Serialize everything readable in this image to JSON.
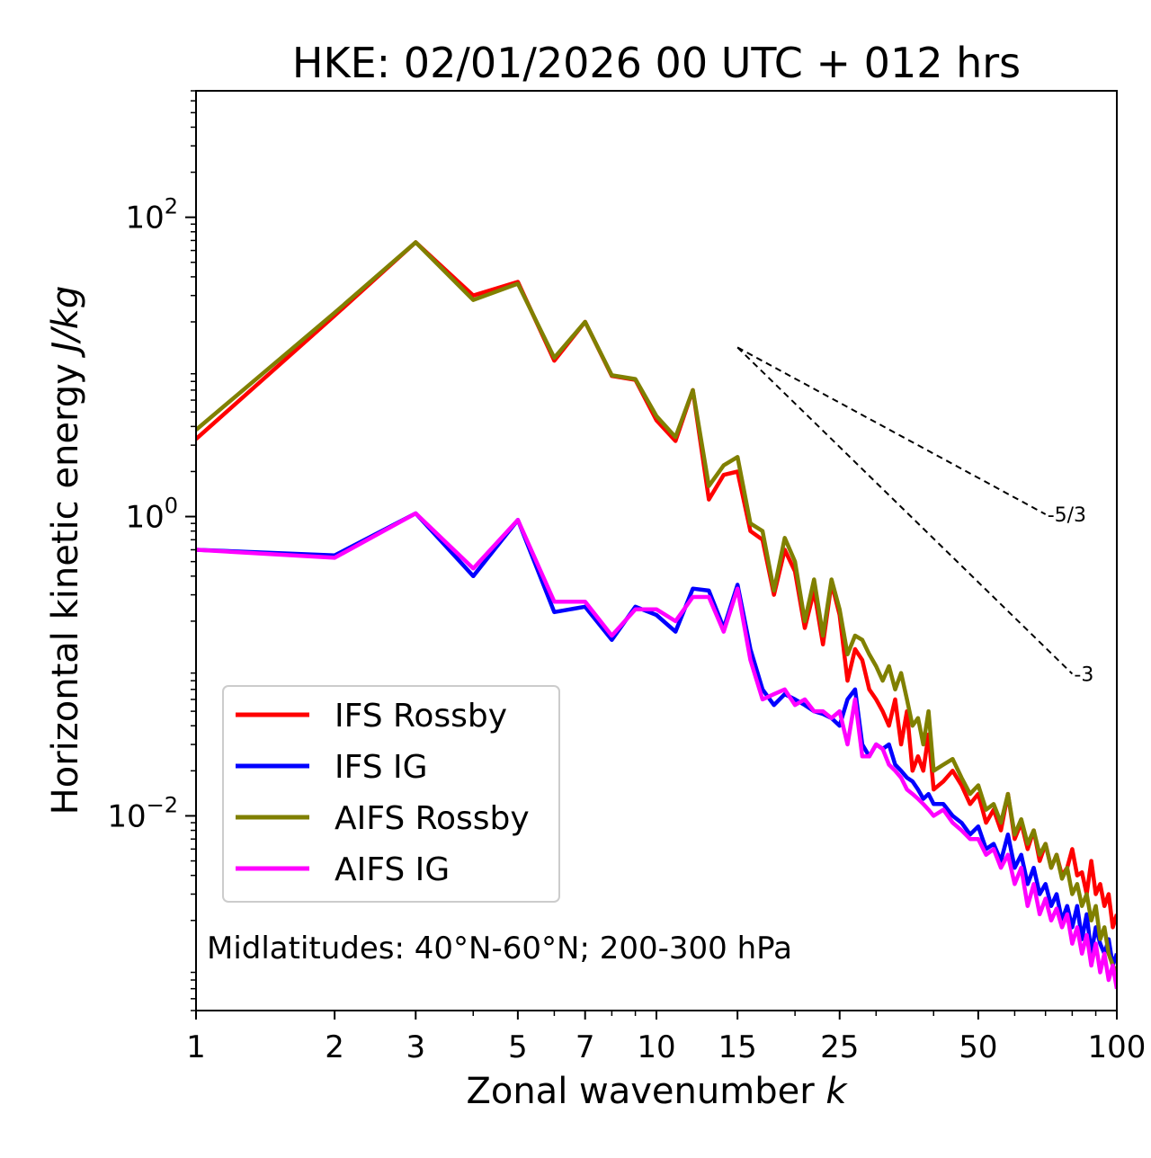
{
  "chart_data": {
    "type": "line",
    "title": "HKE: 02/01/2026 00 UTC + 012 hrs",
    "xlabel": "Zonal wavenumber",
    "xlabel_italic": "k",
    "ylabel": "Horizontal kinetic energy",
    "ylabel_italic": "J/kg",
    "xscale": "log",
    "yscale": "log",
    "xlim": [
      1,
      100
    ],
    "ylim": [
      0.0005,
      700
    ],
    "x_ticks": [
      1,
      2,
      3,
      5,
      7,
      10,
      15,
      25,
      50,
      100
    ],
    "x_tick_labels": [
      "1",
      "2",
      "3",
      "5",
      "7",
      "10",
      "15",
      "25",
      "50",
      "100"
    ],
    "y_ticks": [
      {
        "value": 100,
        "base": "10",
        "exp": "2"
      },
      {
        "value": 1,
        "base": "10",
        "exp": "0"
      },
      {
        "value": 0.01,
        "base": "10",
        "exp": "−2"
      }
    ],
    "annotation": "Midlatitudes: 40°N-60°N; 200-300 hPa",
    "legend_position": "lower-left",
    "reference_lines": [
      {
        "label": "-5/3",
        "slope": -1.6667,
        "x0": 15,
        "y0": 13.5,
        "x1": 70
      },
      {
        "label": "-3",
        "slope": -3,
        "x0": 15,
        "y0": 13.5,
        "x1": 80
      }
    ],
    "series": [
      {
        "name": "IFS Rossby",
        "color": "#ff0000",
        "points": [
          [
            1,
            3.3
          ],
          [
            2,
            22
          ],
          [
            3,
            68
          ],
          [
            4,
            30
          ],
          [
            5,
            37
          ],
          [
            6,
            11
          ],
          [
            7,
            20
          ],
          [
            8,
            8.7
          ],
          [
            9,
            8.2
          ],
          [
            10,
            4.4
          ],
          [
            11,
            3.2
          ],
          [
            12,
            7
          ],
          [
            13,
            1.3
          ],
          [
            14,
            1.9
          ],
          [
            15,
            2.0
          ],
          [
            16,
            0.8
          ],
          [
            17,
            0.7
          ],
          [
            18,
            0.3
          ],
          [
            19,
            0.6
          ],
          [
            20,
            0.43
          ],
          [
            21,
            0.18
          ],
          [
            22,
            0.32
          ],
          [
            23,
            0.14
          ],
          [
            24,
            0.36
          ],
          [
            25,
            0.22
          ],
          [
            26,
            0.08
          ],
          [
            27,
            0.13
          ],
          [
            28,
            0.11
          ],
          [
            29,
            0.07
          ],
          [
            30,
            0.06
          ],
          [
            31,
            0.05
          ],
          [
            32,
            0.04
          ],
          [
            33,
            0.06
          ],
          [
            34,
            0.03
          ],
          [
            35,
            0.05
          ],
          [
            36,
            0.02
          ],
          [
            37,
            0.025
          ],
          [
            38,
            0.02
          ],
          [
            39,
            0.035
          ],
          [
            40,
            0.015
          ],
          [
            42,
            0.017
          ],
          [
            44,
            0.02
          ],
          [
            46,
            0.016
          ],
          [
            48,
            0.012
          ],
          [
            50,
            0.014
          ],
          [
            52,
            0.009
          ],
          [
            54,
            0.011
          ],
          [
            56,
            0.008
          ],
          [
            58,
            0.014
          ],
          [
            60,
            0.007
          ],
          [
            62,
            0.009
          ],
          [
            64,
            0.006
          ],
          [
            66,
            0.008
          ],
          [
            68,
            0.005
          ],
          [
            70,
            0.0065
          ],
          [
            72,
            0.0045
          ],
          [
            74,
            0.0055
          ],
          [
            76,
            0.004
          ],
          [
            78,
            0.0045
          ],
          [
            80,
            0.006
          ],
          [
            82,
            0.004
          ],
          [
            84,
            0.0042
          ],
          [
            86,
            0.003
          ],
          [
            88,
            0.005
          ],
          [
            90,
            0.003
          ],
          [
            92,
            0.0035
          ],
          [
            94,
            0.0025
          ],
          [
            96,
            0.003
          ],
          [
            98,
            0.0018
          ],
          [
            100,
            0.0022
          ]
        ]
      },
      {
        "name": "IFS IG",
        "color": "#0000ff",
        "points": [
          [
            1,
            0.6
          ],
          [
            2,
            0.55
          ],
          [
            3,
            1.05
          ],
          [
            4,
            0.4
          ],
          [
            5,
            0.95
          ],
          [
            6,
            0.23
          ],
          [
            7,
            0.25
          ],
          [
            8,
            0.15
          ],
          [
            9,
            0.25
          ],
          [
            10,
            0.22
          ],
          [
            11,
            0.17
          ],
          [
            12,
            0.33
          ],
          [
            13,
            0.32
          ],
          [
            14,
            0.18
          ],
          [
            15,
            0.35
          ],
          [
            16,
            0.13
          ],
          [
            17,
            0.07
          ],
          [
            18,
            0.055
          ],
          [
            19,
            0.065
          ],
          [
            20,
            0.06
          ],
          [
            21,
            0.055
          ],
          [
            22,
            0.05
          ],
          [
            23,
            0.048
          ],
          [
            24,
            0.045
          ],
          [
            25,
            0.04
          ],
          [
            26,
            0.06
          ],
          [
            27,
            0.07
          ],
          [
            28,
            0.03
          ],
          [
            29,
            0.025
          ],
          [
            30,
            0.03
          ],
          [
            31,
            0.028
          ],
          [
            32,
            0.03
          ],
          [
            33,
            0.022
          ],
          [
            34,
            0.02
          ],
          [
            35,
            0.018
          ],
          [
            36,
            0.017
          ],
          [
            37,
            0.015
          ],
          [
            38,
            0.013
          ],
          [
            39,
            0.014
          ],
          [
            40,
            0.012
          ],
          [
            42,
            0.012
          ],
          [
            44,
            0.01
          ],
          [
            46,
            0.009
          ],
          [
            48,
            0.0075
          ],
          [
            50,
            0.0085
          ],
          [
            52,
            0.006
          ],
          [
            54,
            0.0065
          ],
          [
            56,
            0.005
          ],
          [
            58,
            0.0075
          ],
          [
            60,
            0.0045
          ],
          [
            62,
            0.0055
          ],
          [
            64,
            0.0035
          ],
          [
            66,
            0.0045
          ],
          [
            68,
            0.003
          ],
          [
            70,
            0.0035
          ],
          [
            72,
            0.0025
          ],
          [
            74,
            0.003
          ],
          [
            76,
            0.002
          ],
          [
            78,
            0.0025
          ],
          [
            80,
            0.0018
          ],
          [
            82,
            0.0025
          ],
          [
            84,
            0.0015
          ],
          [
            86,
            0.0022
          ],
          [
            88,
            0.0012
          ],
          [
            90,
            0.0018
          ],
          [
            92,
            0.0014
          ],
          [
            94,
            0.0012
          ],
          [
            96,
            0.0015
          ],
          [
            98,
            0.001
          ],
          [
            100,
            0.0012
          ]
        ]
      },
      {
        "name": "AIFS Rossby",
        "color": "#808000",
        "points": [
          [
            1,
            3.8
          ],
          [
            2,
            23
          ],
          [
            3,
            68
          ],
          [
            4,
            28
          ],
          [
            5,
            36
          ],
          [
            6,
            11.5
          ],
          [
            7,
            20
          ],
          [
            8,
            8.8
          ],
          [
            9,
            8.3
          ],
          [
            10,
            4.7
          ],
          [
            11,
            3.4
          ],
          [
            12,
            7
          ],
          [
            13,
            1.6
          ],
          [
            14,
            2.2
          ],
          [
            15,
            2.5
          ],
          [
            16,
            0.9
          ],
          [
            17,
            0.8
          ],
          [
            18,
            0.32
          ],
          [
            19,
            0.72
          ],
          [
            20,
            0.5
          ],
          [
            21,
            0.2
          ],
          [
            22,
            0.38
          ],
          [
            23,
            0.16
          ],
          [
            24,
            0.38
          ],
          [
            25,
            0.24
          ],
          [
            26,
            0.12
          ],
          [
            27,
            0.16
          ],
          [
            28,
            0.15
          ],
          [
            29,
            0.12
          ],
          [
            30,
            0.1
          ],
          [
            31,
            0.08
          ],
          [
            32,
            0.1
          ],
          [
            33,
            0.07
          ],
          [
            34,
            0.09
          ],
          [
            35,
            0.06
          ],
          [
            36,
            0.04
          ],
          [
            37,
            0.045
          ],
          [
            38,
            0.03
          ],
          [
            39,
            0.05
          ],
          [
            40,
            0.02
          ],
          [
            42,
            0.022
          ],
          [
            44,
            0.024
          ],
          [
            46,
            0.018
          ],
          [
            48,
            0.014
          ],
          [
            50,
            0.016
          ],
          [
            52,
            0.011
          ],
          [
            54,
            0.012
          ],
          [
            56,
            0.009
          ],
          [
            58,
            0.014
          ],
          [
            60,
            0.0075
          ],
          [
            62,
            0.0095
          ],
          [
            64,
            0.0065
          ],
          [
            66,
            0.008
          ],
          [
            68,
            0.0055
          ],
          [
            70,
            0.0065
          ],
          [
            72,
            0.0045
          ],
          [
            74,
            0.0055
          ],
          [
            76,
            0.0038
          ],
          [
            78,
            0.0045
          ],
          [
            80,
            0.003
          ],
          [
            82,
            0.0035
          ],
          [
            84,
            0.0025
          ],
          [
            86,
            0.003
          ],
          [
            88,
            0.002
          ],
          [
            90,
            0.0025
          ],
          [
            92,
            0.0015
          ],
          [
            94,
            0.0018
          ],
          [
            96,
            0.0012
          ],
          [
            98,
            0.001
          ],
          [
            100,
            0.0009
          ]
        ]
      },
      {
        "name": "AIFS IG",
        "color": "#ff00ff",
        "points": [
          [
            1,
            0.6
          ],
          [
            2,
            0.53
          ],
          [
            3,
            1.05
          ],
          [
            4,
            0.45
          ],
          [
            5,
            0.95
          ],
          [
            6,
            0.27
          ],
          [
            7,
            0.27
          ],
          [
            8,
            0.16
          ],
          [
            9,
            0.24
          ],
          [
            10,
            0.24
          ],
          [
            11,
            0.2
          ],
          [
            12,
            0.29
          ],
          [
            13,
            0.29
          ],
          [
            14,
            0.17
          ],
          [
            15,
            0.33
          ],
          [
            16,
            0.11
          ],
          [
            17,
            0.06
          ],
          [
            18,
            0.065
          ],
          [
            19,
            0.07
          ],
          [
            20,
            0.055
          ],
          [
            21,
            0.06
          ],
          [
            22,
            0.05
          ],
          [
            23,
            0.05
          ],
          [
            24,
            0.045
          ],
          [
            25,
            0.05
          ],
          [
            26,
            0.03
          ],
          [
            27,
            0.06
          ],
          [
            28,
            0.025
          ],
          [
            29,
            0.025
          ],
          [
            30,
            0.03
          ],
          [
            31,
            0.028
          ],
          [
            32,
            0.022
          ],
          [
            33,
            0.02
          ],
          [
            34,
            0.018
          ],
          [
            35,
            0.015
          ],
          [
            36,
            0.014
          ],
          [
            37,
            0.013
          ],
          [
            38,
            0.012
          ],
          [
            39,
            0.011
          ],
          [
            40,
            0.01
          ],
          [
            42,
            0.011
          ],
          [
            44,
            0.009
          ],
          [
            46,
            0.008
          ],
          [
            48,
            0.007
          ],
          [
            50,
            0.007
          ],
          [
            52,
            0.0055
          ],
          [
            54,
            0.006
          ],
          [
            56,
            0.0045
          ],
          [
            58,
            0.0055
          ],
          [
            60,
            0.0035
          ],
          [
            62,
            0.0045
          ],
          [
            64,
            0.0025
          ],
          [
            66,
            0.0035
          ],
          [
            68,
            0.0022
          ],
          [
            70,
            0.0028
          ],
          [
            72,
            0.002
          ],
          [
            74,
            0.0024
          ],
          [
            76,
            0.0018
          ],
          [
            78,
            0.0022
          ],
          [
            80,
            0.0014
          ],
          [
            82,
            0.0018
          ],
          [
            84,
            0.0012
          ],
          [
            86,
            0.0016
          ],
          [
            88,
            0.001
          ],
          [
            90,
            0.0014
          ],
          [
            92,
            0.0009
          ],
          [
            94,
            0.0012
          ],
          [
            96,
            0.0008
          ],
          [
            98,
            0.001
          ],
          [
            100,
            0.0007
          ]
        ]
      }
    ]
  }
}
